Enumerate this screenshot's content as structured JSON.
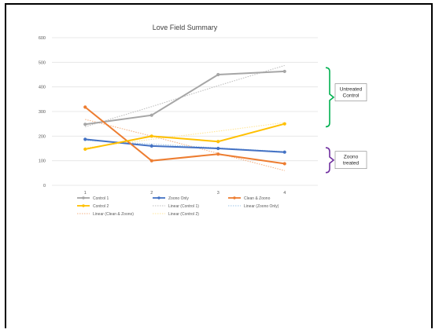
{
  "chart_data": {
    "type": "line",
    "title": "Love Field Summary",
    "categories": [
      "1",
      "2",
      "3",
      "4"
    ],
    "ylim": [
      0,
      600
    ],
    "yticks": [
      "0",
      "100",
      "200",
      "300",
      "400",
      "500",
      "600"
    ],
    "grid": true,
    "legend_placement": "bottom",
    "series": [
      {
        "name": "Control 1",
        "color": "#a6a6a6",
        "values": [
          248,
          285,
          450,
          463
        ]
      },
      {
        "name": "Zoono Only",
        "color": "#4472c4",
        "values": [
          187,
          160,
          150,
          135
        ]
      },
      {
        "name": "Clean & Zoono",
        "color": "#ed7d31",
        "values": [
          318,
          100,
          127,
          88
        ]
      },
      {
        "name": "Control 2",
        "color": "#ffc000",
        "values": [
          147,
          200,
          178,
          250
        ]
      }
    ],
    "trendlines": [
      {
        "name": "Linear (Control 1)",
        "color": "#bfbfbf",
        "values": [
          238,
          320,
          405,
          487
        ]
      },
      {
        "name": "Linear (Zoono Only)",
        "color": "#9dc3e6",
        "values": [
          183,
          168,
          152,
          137
        ]
      },
      {
        "name": "Linear (Clean & Zoono)",
        "color": "#f4b183",
        "values": [
          268,
          200,
          130,
          60
        ]
      },
      {
        "name": "Linear (Control 2)",
        "color": "#ffe699",
        "values": [
          152,
          187,
          220,
          255
        ]
      }
    ],
    "annotations": [
      {
        "lines": [
          "Untreated",
          "Control"
        ],
        "bracket_color": "#00b050"
      },
      {
        "lines": [
          "Zoono",
          "treated"
        ],
        "bracket_color": "#7030a0"
      }
    ]
  }
}
